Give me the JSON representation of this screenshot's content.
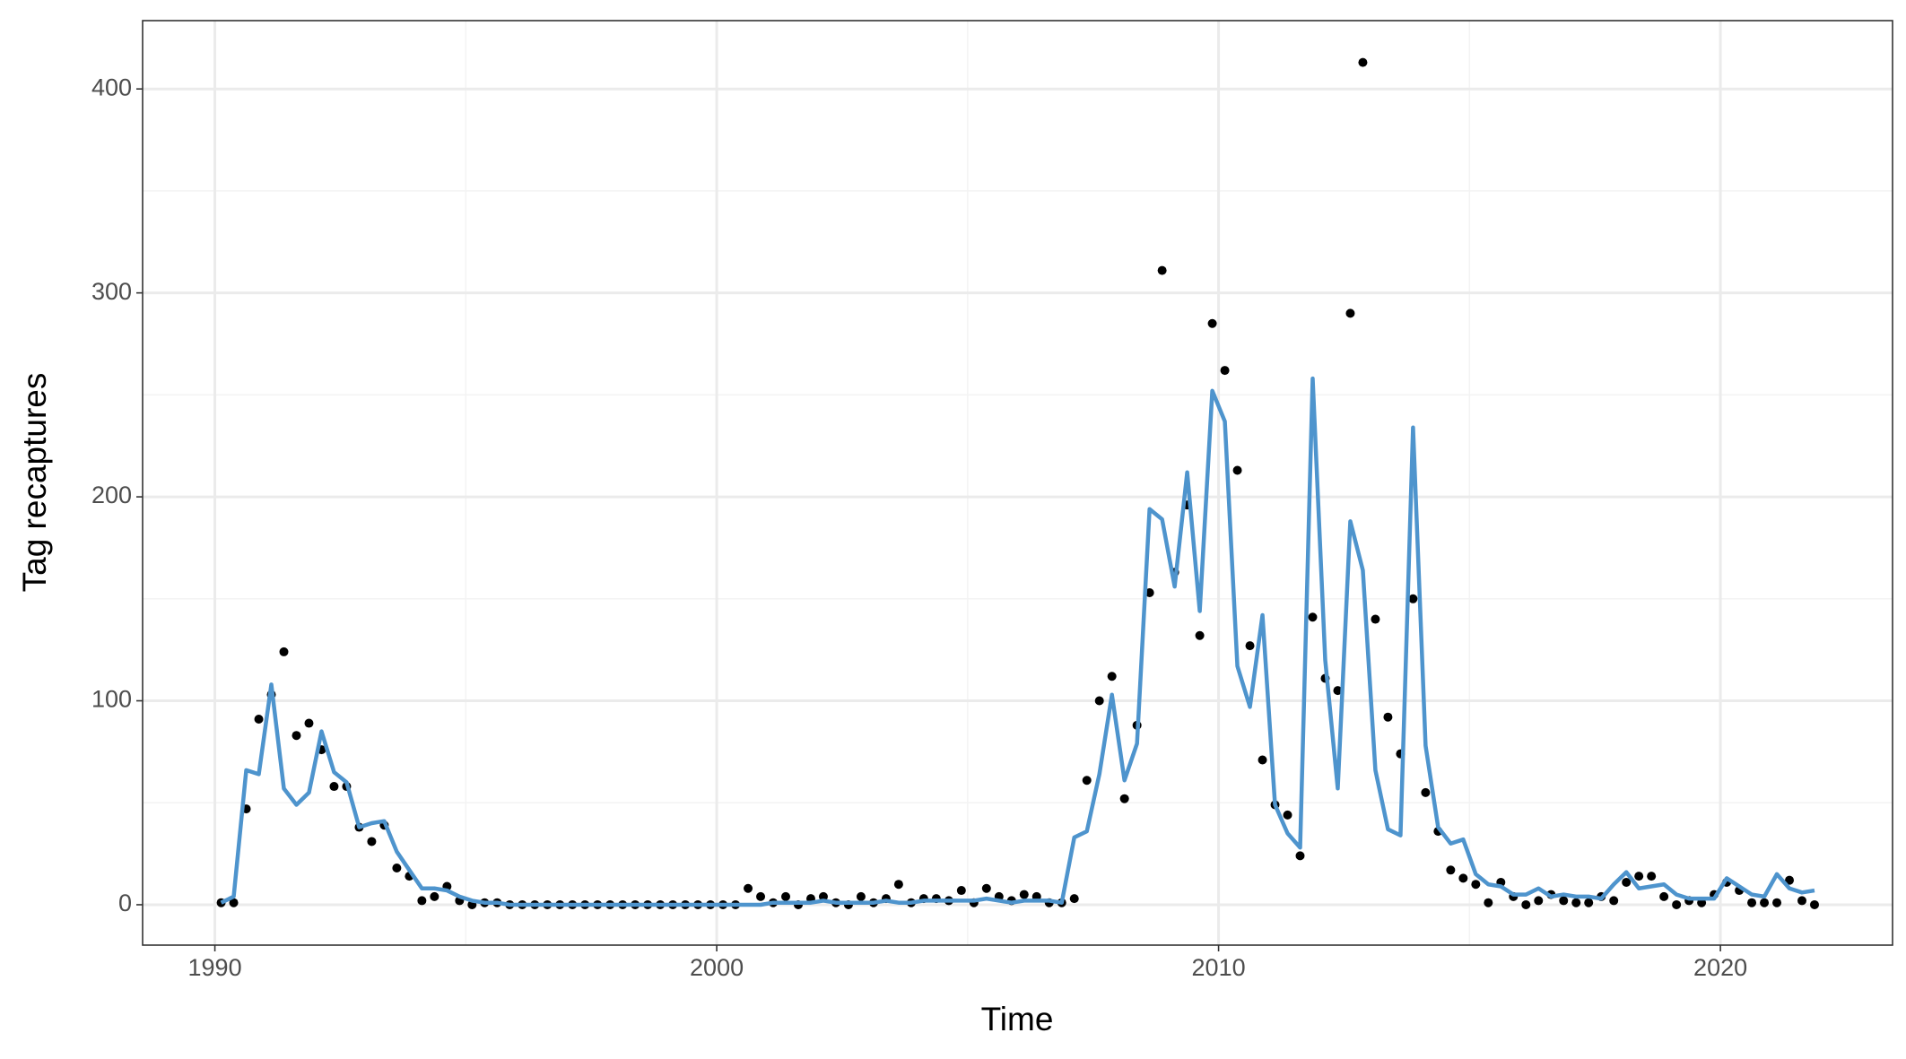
{
  "chart_data": {
    "type": "line",
    "xlabel": "Time",
    "ylabel": "Tag recaptures",
    "x": [
      1990.125,
      1990.375,
      1990.625,
      1990.875,
      1991.125,
      1991.375,
      1991.625,
      1991.875,
      1992.125,
      1992.375,
      1992.625,
      1992.875,
      1993.125,
      1993.375,
      1993.625,
      1993.875,
      1994.125,
      1994.375,
      1994.625,
      1994.875,
      1995.125,
      1995.375,
      1995.625,
      1995.875,
      1996.125,
      1996.375,
      1996.625,
      1996.875,
      1997.125,
      1997.375,
      1997.625,
      1997.875,
      1998.125,
      1998.375,
      1998.625,
      1998.875,
      1999.125,
      1999.375,
      1999.625,
      1999.875,
      2000.125,
      2000.375,
      2000.625,
      2000.875,
      2001.125,
      2001.375,
      2001.625,
      2001.875,
      2002.125,
      2002.375,
      2002.625,
      2002.875,
      2003.125,
      2003.375,
      2003.625,
      2003.875,
      2004.125,
      2004.375,
      2004.625,
      2004.875,
      2005.125,
      2005.375,
      2005.625,
      2005.875,
      2006.125,
      2006.375,
      2006.625,
      2006.875,
      2007.125,
      2007.375,
      2007.625,
      2007.875,
      2008.125,
      2008.375,
      2008.625,
      2008.875,
      2009.125,
      2009.375,
      2009.625,
      2009.875,
      2010.125,
      2010.375,
      2010.625,
      2010.875,
      2011.125,
      2011.375,
      2011.625,
      2011.875,
      2012.125,
      2012.375,
      2012.625,
      2012.875,
      2013.125,
      2013.375,
      2013.625,
      2013.875,
      2014.125,
      2014.375,
      2014.625,
      2014.875,
      2015.125,
      2015.375,
      2015.625,
      2015.875,
      2016.125,
      2016.375,
      2016.625,
      2016.875,
      2017.125,
      2017.375,
      2017.625,
      2017.875,
      2018.125,
      2018.375,
      2018.625,
      2018.875,
      2019.125,
      2019.375,
      2019.625,
      2019.875,
      2020.125,
      2020.375,
      2020.625,
      2020.875,
      2021.125,
      2021.375,
      2021.625,
      2021.875
    ],
    "series": [
      {
        "type": "scatter",
        "color": "#000000",
        "values": [
          1,
          1,
          47,
          91,
          103,
          124,
          83,
          89,
          76,
          58,
          58,
          38,
          31,
          39,
          18,
          14,
          2,
          4,
          9,
          2,
          0,
          1,
          1,
          0,
          0,
          0,
          0,
          0,
          0,
          0,
          0,
          0,
          0,
          0,
          0,
          0,
          0,
          0,
          0,
          0,
          0,
          0,
          8,
          4,
          1,
          4,
          0,
          3,
          4,
          1,
          0,
          4,
          1,
          3,
          10,
          1,
          3,
          3,
          2,
          7,
          1,
          8,
          4,
          2,
          5,
          4,
          1,
          1,
          3,
          61,
          100,
          112,
          52,
          88,
          153,
          311,
          163,
          196,
          132,
          285,
          262,
          213,
          127,
          71,
          49,
          44,
          24,
          141,
          111,
          105,
          290,
          413,
          140,
          92,
          74,
          150,
          55,
          36,
          17,
          13,
          10,
          1,
          11,
          4,
          0,
          2,
          5,
          2,
          1,
          1,
          4,
          2,
          11,
          14,
          14,
          4,
          0,
          2,
          1,
          5,
          11,
          7,
          1,
          1,
          1,
          12,
          2,
          0
        ]
      },
      {
        "type": "line",
        "color": "#4e94cd",
        "values": [
          1,
          4,
          66,
          64,
          108,
          57,
          49,
          55,
          85,
          65,
          60,
          38,
          40,
          41,
          26,
          17,
          8,
          8,
          7,
          4,
          2,
          1,
          1,
          0,
          0,
          0,
          0,
          0,
          0,
          0,
          0,
          0,
          0,
          0,
          0,
          0,
          0,
          0,
          0,
          0,
          0,
          0,
          0,
          0,
          1,
          1,
          1,
          1,
          2,
          1,
          1,
          1,
          1,
          2,
          1,
          1,
          2,
          2,
          2,
          2,
          2,
          3,
          2,
          1,
          2,
          2,
          2,
          1,
          33,
          36,
          64,
          103,
          61,
          79,
          194,
          189,
          156,
          212,
          144,
          252,
          237,
          117,
          97,
          142,
          49,
          35,
          28,
          258,
          120,
          57,
          188,
          164,
          66,
          37,
          34,
          234,
          78,
          38,
          30,
          32,
          15,
          10,
          9,
          5,
          5,
          8,
          4,
          5,
          4,
          4,
          3,
          10,
          16,
          8,
          9,
          10,
          5,
          3,
          3,
          3,
          13,
          9,
          5,
          4,
          15,
          8,
          6,
          7
        ]
      }
    ],
    "xlim": [
      1988.56,
      2023.43
    ],
    "xticks": [
      1990,
      2000,
      2010,
      2020
    ],
    "ylim": [
      -19.8,
      433.5
    ],
    "yticks": [
      0,
      100,
      200,
      300,
      400
    ],
    "grid": true
  }
}
